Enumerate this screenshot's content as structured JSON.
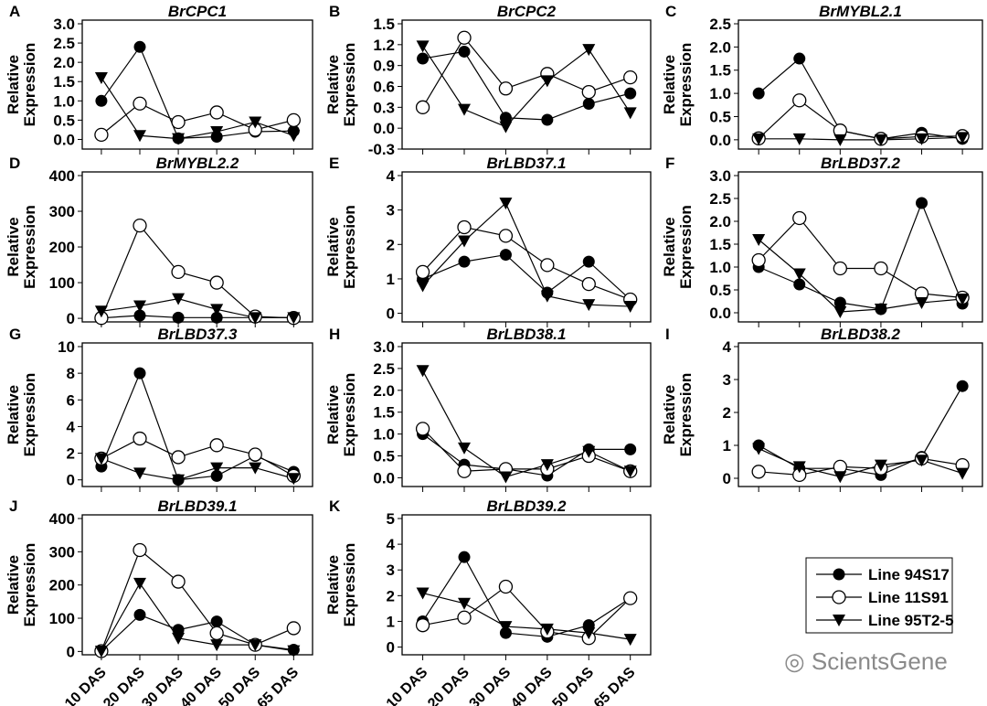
{
  "chart_data": [
    {
      "type": "line",
      "panel": "A",
      "title": "BrCPC1",
      "yticks": [
        0.0,
        0.5,
        1.0,
        1.5,
        2.0,
        2.5,
        3.0
      ],
      "tickfmt": 1,
      "ylim": [
        -0.25,
        3.0
      ],
      "ylabel": [
        "Relative",
        "Expression"
      ],
      "series": [
        {
          "name": "Line 94S17",
          "values": [
            1.0,
            2.4,
            0.03,
            0.07,
            0.2,
            0.22
          ]
        },
        {
          "name": "Line 11S91",
          "values": [
            0.12,
            0.93,
            0.45,
            0.7,
            0.25,
            0.5
          ]
        },
        {
          "name": "Line 95T2-5",
          "values": [
            1.6,
            0.1,
            0.02,
            0.2,
            0.45,
            0.1
          ]
        }
      ]
    },
    {
      "type": "line",
      "panel": "B",
      "title": "BrCPC2",
      "yticks": [
        -0.3,
        0.0,
        0.3,
        0.6,
        0.9,
        1.2,
        1.5
      ],
      "tickfmt": 1,
      "ylim": [
        -0.3,
        1.5
      ],
      "ylabel": [
        "Relative",
        "Expression"
      ],
      "series": [
        {
          "name": "Line 94S17",
          "values": [
            1.0,
            1.1,
            0.15,
            0.12,
            0.35,
            0.5
          ]
        },
        {
          "name": "Line 11S91",
          "values": [
            0.3,
            1.3,
            0.57,
            0.78,
            0.52,
            0.73
          ]
        },
        {
          "name": "Line 95T2-5",
          "values": [
            1.18,
            0.27,
            0.02,
            0.68,
            1.13,
            0.22
          ]
        }
      ]
    },
    {
      "type": "line",
      "panel": "C",
      "title": "BrMYBL2.1",
      "yticks": [
        0.0,
        0.5,
        1.0,
        1.5,
        2.0,
        2.5
      ],
      "tickfmt": 1,
      "ylim": [
        -0.2,
        2.5
      ],
      "ylabel": [
        "Relative",
        "Expression"
      ],
      "series": [
        {
          "name": "Line 94S17",
          "values": [
            1.0,
            1.75,
            0.2,
            0.02,
            0.15,
            0.02
          ]
        },
        {
          "name": "Line 11S91",
          "values": [
            0.03,
            0.85,
            0.2,
            0.02,
            0.07,
            0.08
          ]
        },
        {
          "name": "Line 95T2-5",
          "values": [
            0.02,
            0.02,
            0.0,
            0.0,
            0.02,
            0.05
          ]
        }
      ]
    },
    {
      "type": "line",
      "panel": "D",
      "title": "BrMYBL2.2",
      "yticks": [
        0,
        100,
        200,
        300,
        400
      ],
      "tickfmt": 0,
      "ylim": [
        -10,
        400
      ],
      "ylabel": [
        "Relative",
        "Expression"
      ],
      "series": [
        {
          "name": "Line 94S17",
          "values": [
            1,
            8,
            2,
            2,
            2,
            2
          ]
        },
        {
          "name": "Line 11S91",
          "values": [
            1,
            260,
            130,
            100,
            5,
            1
          ]
        },
        {
          "name": "Line 95T2-5",
          "values": [
            20,
            35,
            55,
            25,
            2,
            2
          ]
        }
      ]
    },
    {
      "type": "line",
      "panel": "E",
      "title": "BrLBD37.1",
      "yticks": [
        0,
        1,
        2,
        3,
        4
      ],
      "tickfmt": 0,
      "ylim": [
        -0.25,
        4
      ],
      "ylabel": [
        "Relative",
        "Expression"
      ],
      "series": [
        {
          "name": "Line 94S17",
          "values": [
            1.0,
            1.5,
            1.7,
            0.6,
            1.5,
            0.4
          ]
        },
        {
          "name": "Line 11S91",
          "values": [
            1.2,
            2.5,
            2.25,
            1.4,
            0.85,
            0.4
          ]
        },
        {
          "name": "Line 95T2-5",
          "values": [
            0.8,
            2.1,
            3.2,
            0.5,
            0.25,
            0.2
          ]
        }
      ]
    },
    {
      "type": "line",
      "panel": "F",
      "title": "BrLBD37.2",
      "yticks": [
        0.0,
        0.5,
        1.0,
        1.5,
        2.0,
        2.5,
        3.0
      ],
      "tickfmt": 1,
      "ylim": [
        -0.2,
        3.0
      ],
      "ylabel": [
        "Relative",
        "Expression"
      ],
      "series": [
        {
          "name": "Line 94S17",
          "values": [
            1.0,
            0.62,
            0.22,
            0.08,
            2.4,
            0.2
          ]
        },
        {
          "name": "Line 11S91",
          "values": [
            1.15,
            2.07,
            0.97,
            0.97,
            0.42,
            0.33
          ]
        },
        {
          "name": "Line 95T2-5",
          "values": [
            1.6,
            0.85,
            0.02,
            0.08,
            0.22,
            0.3
          ]
        }
      ]
    },
    {
      "type": "line",
      "panel": "G",
      "title": "BrLBD37.3",
      "yticks": [
        0,
        2,
        4,
        6,
        8,
        10
      ],
      "tickfmt": 0,
      "ylim": [
        -0.5,
        10
      ],
      "ylabel": [
        "Relative",
        "Expression"
      ],
      "series": [
        {
          "name": "Line 94S17",
          "values": [
            1.0,
            8.0,
            0.0,
            0.3,
            1.8,
            0.6
          ]
        },
        {
          "name": "Line 11S91",
          "values": [
            1.6,
            3.1,
            1.7,
            2.6,
            1.9,
            0.3
          ]
        },
        {
          "name": "Line 95T2-5",
          "values": [
            1.6,
            0.5,
            0.0,
            0.9,
            0.9,
            0.1
          ]
        }
      ]
    },
    {
      "type": "line",
      "panel": "H",
      "title": "BrLBD38.1",
      "yticks": [
        0.0,
        0.5,
        1.0,
        1.5,
        2.0,
        2.5,
        3.0
      ],
      "tickfmt": 1,
      "ylim": [
        -0.2,
        3.0
      ],
      "ylabel": [
        "Relative",
        "Expression"
      ],
      "series": [
        {
          "name": "Line 94S17",
          "values": [
            1.0,
            0.3,
            0.2,
            0.05,
            0.65,
            0.65
          ]
        },
        {
          "name": "Line 11S91",
          "values": [
            1.12,
            0.15,
            0.2,
            0.2,
            0.5,
            0.15
          ]
        },
        {
          "name": "Line 95T2-5",
          "values": [
            2.45,
            0.68,
            0.02,
            0.3,
            0.6,
            0.15
          ]
        }
      ]
    },
    {
      "type": "line",
      "panel": "I",
      "title": "BrLBD38.2",
      "yticks": [
        0,
        1,
        2,
        3,
        4
      ],
      "tickfmt": 0,
      "ylim": [
        -0.25,
        4
      ],
      "ylabel": [
        "Relative",
        "Expression"
      ],
      "series": [
        {
          "name": "Line 94S17",
          "values": [
            1.0,
            0.3,
            0.3,
            0.1,
            0.65,
            2.8
          ]
        },
        {
          "name": "Line 11S91",
          "values": [
            0.2,
            0.1,
            0.35,
            0.3,
            0.6,
            0.4
          ]
        },
        {
          "name": "Line 95T2-5",
          "values": [
            0.9,
            0.35,
            0.05,
            0.4,
            0.55,
            0.15
          ]
        }
      ]
    },
    {
      "type": "line",
      "panel": "J",
      "title": "BrLBD39.1",
      "yticks": [
        0,
        100,
        200,
        300,
        400
      ],
      "tickfmt": 0,
      "ylim": [
        -10,
        400
      ],
      "ylabel": [
        "Relative",
        "Expression"
      ],
      "series": [
        {
          "name": "Line 94S17",
          "values": [
            1,
            110,
            65,
            90,
            20,
            5
          ]
        },
        {
          "name": "Line 11S91",
          "values": [
            1,
            305,
            210,
            55,
            20,
            70
          ]
        },
        {
          "name": "Line 95T2-5",
          "values": [
            1,
            205,
            40,
            20,
            20,
            2
          ]
        }
      ]
    },
    {
      "type": "line",
      "panel": "K",
      "title": "BrLBD39.2",
      "yticks": [
        0,
        1,
        2,
        3,
        4,
        5
      ],
      "tickfmt": 0,
      "ylim": [
        -0.3,
        5
      ],
      "ylabel": [
        "Relative",
        "Expression"
      ],
      "series": [
        {
          "name": "Line 94S17",
          "values": [
            1.0,
            3.5,
            0.55,
            0.4,
            0.85,
            1.9
          ]
        },
        {
          "name": "Line 11S91",
          "values": [
            0.85,
            1.15,
            2.35,
            0.6,
            0.35,
            1.9
          ]
        },
        {
          "name": "Line 95T2-5",
          "values": [
            2.1,
            1.7,
            0.8,
            0.7,
            0.55,
            0.3
          ]
        }
      ]
    }
  ],
  "x_categories": [
    "10 DAS",
    "20 DAS",
    "30 DAS",
    "40 DAS",
    "50 DAS",
    "65 DAS"
  ],
  "legend": [
    {
      "label": "Line 94S17",
      "marker": "filled-circle"
    },
    {
      "label": "Line 11S91",
      "marker": "open-circle"
    },
    {
      "label": "Line 95T2-5",
      "marker": "filled-triangle-down"
    }
  ],
  "legend_position": "bottom-right",
  "watermark": "ScientsGene"
}
